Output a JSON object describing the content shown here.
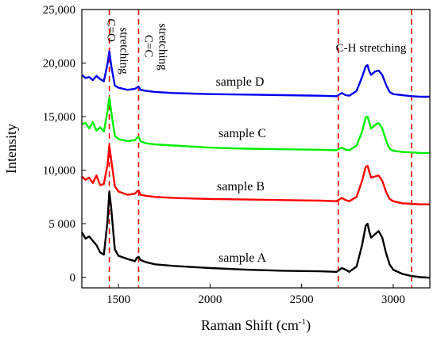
{
  "chart_data": {
    "type": "line",
    "title": "",
    "xlabel": "Raman Shift (cm",
    "xlabel_sup": "-1",
    "xlabel_close": ")",
    "ylabel": "Intensity",
    "xlim": [
      1300,
      3200
    ],
    "ylim": [
      -1000,
      25000
    ],
    "x_ticks": [
      1500,
      2000,
      2500,
      3000
    ],
    "y_ticks": [
      0,
      5000,
      10000,
      15000,
      20000,
      25000
    ],
    "x_tick_labels": [
      "1500",
      "2000",
      "2500",
      "3000"
    ],
    "y_tick_labels": [
      "0",
      "5 000",
      "10,000",
      "15,000",
      "20,000",
      "25,000"
    ],
    "grid": false,
    "vlines": [
      1450,
      1610,
      2700,
      3100
    ],
    "vline_color": "#ff0000",
    "annotations": {
      "c_o": [
        "C=O",
        "stretching"
      ],
      "c_c": [
        "C=C",
        "stretching"
      ],
      "c_h": "C-H stretching"
    },
    "series": [
      {
        "name": "sample A",
        "color": "#000000",
        "x": [
          1300,
          1320,
          1340,
          1360,
          1380,
          1400,
          1420,
          1440,
          1450,
          1460,
          1480,
          1500,
          1550,
          1590,
          1600,
          1610,
          1620,
          1650,
          1700,
          1800,
          1900,
          2000,
          2200,
          2400,
          2600,
          2690,
          2700,
          2720,
          2740,
          2760,
          2800,
          2830,
          2850,
          2860,
          2870,
          2880,
          2900,
          2920,
          2940,
          2960,
          2980,
          3000,
          3050,
          3100,
          3150,
          3200
        ],
        "y": [
          4200,
          3600,
          3800,
          3400,
          3000,
          2300,
          2100,
          5200,
          8000,
          6500,
          2600,
          2000,
          1700,
          1500,
          1800,
          1900,
          1600,
          1400,
          1200,
          1050,
          950,
          850,
          700,
          600,
          550,
          500,
          600,
          850,
          700,
          500,
          1000,
          3000,
          4800,
          5000,
          4200,
          3700,
          4000,
          4300,
          3700,
          2300,
          1200,
          700,
          300,
          100,
          0,
          -50
        ]
      },
      {
        "name": "sample B",
        "color": "#ff0000",
        "x": [
          1300,
          1320,
          1340,
          1360,
          1380,
          1400,
          1420,
          1440,
          1450,
          1460,
          1480,
          1500,
          1550,
          1590,
          1600,
          1610,
          1620,
          1650,
          1700,
          1800,
          1900,
          2000,
          2200,
          2400,
          2600,
          2690,
          2700,
          2720,
          2740,
          2760,
          2800,
          2830,
          2850,
          2860,
          2870,
          2880,
          2900,
          2920,
          2940,
          2960,
          2980,
          3000,
          3050,
          3100,
          3150,
          3200
        ],
        "y": [
          9400,
          9100,
          9300,
          8800,
          9500,
          8600,
          8700,
          10500,
          12300,
          11000,
          8500,
          8000,
          7700,
          7800,
          8000,
          8100,
          7700,
          7600,
          7500,
          7400,
          7350,
          7300,
          7250,
          7200,
          7150,
          7100,
          7200,
          7400,
          7200,
          7100,
          7500,
          9000,
          10300,
          10400,
          9800,
          9300,
          9400,
          9500,
          9000,
          8000,
          7300,
          7100,
          6900,
          6850,
          6800,
          6800
        ]
      },
      {
        "name": "sample C",
        "color": "#00ee00",
        "x": [
          1300,
          1320,
          1340,
          1360,
          1380,
          1400,
          1420,
          1440,
          1450,
          1460,
          1480,
          1500,
          1550,
          1590,
          1600,
          1610,
          1620,
          1650,
          1700,
          1800,
          1900,
          2000,
          2200,
          2400,
          2600,
          2690,
          2700,
          2720,
          2740,
          2760,
          2800,
          2830,
          2850,
          2860,
          2870,
          2880,
          2900,
          2920,
          2940,
          2960,
          2980,
          3000,
          3050,
          3100,
          3150,
          3200
        ],
        "y": [
          14300,
          14400,
          13900,
          14500,
          13700,
          14000,
          13600,
          15500,
          16800,
          15500,
          13200,
          12900,
          12700,
          12800,
          13000,
          13100,
          12700,
          12500,
          12400,
          12300,
          12200,
          12100,
          12000,
          11950,
          11900,
          11850,
          11950,
          12100,
          11900,
          11850,
          12300,
          13600,
          14900,
          15000,
          14400,
          13900,
          14200,
          14400,
          13900,
          12800,
          12000,
          11800,
          11700,
          11650,
          11600,
          11600
        ]
      },
      {
        "name": "sample D",
        "color": "#0000ee",
        "x": [
          1300,
          1320,
          1340,
          1360,
          1380,
          1400,
          1420,
          1440,
          1450,
          1460,
          1480,
          1500,
          1550,
          1590,
          1600,
          1610,
          1620,
          1650,
          1700,
          1800,
          1900,
          2000,
          2200,
          2400,
          2600,
          2690,
          2700,
          2720,
          2740,
          2760,
          2800,
          2830,
          2850,
          2860,
          2870,
          2880,
          2900,
          2920,
          2940,
          2960,
          2980,
          3000,
          3050,
          3100,
          3150,
          3200
        ],
        "y": [
          18900,
          18600,
          18700,
          18400,
          18800,
          18500,
          18300,
          19900,
          21100,
          19800,
          17900,
          17700,
          17500,
          17600,
          17700,
          17800,
          17500,
          17400,
          17300,
          17200,
          17150,
          17100,
          17050,
          17000,
          16950,
          16900,
          17000,
          17200,
          17000,
          16950,
          17400,
          18700,
          19700,
          19800,
          19200,
          18900,
          19200,
          19300,
          18900,
          18000,
          17300,
          17100,
          17000,
          16900,
          16850,
          16850
        ]
      }
    ]
  }
}
